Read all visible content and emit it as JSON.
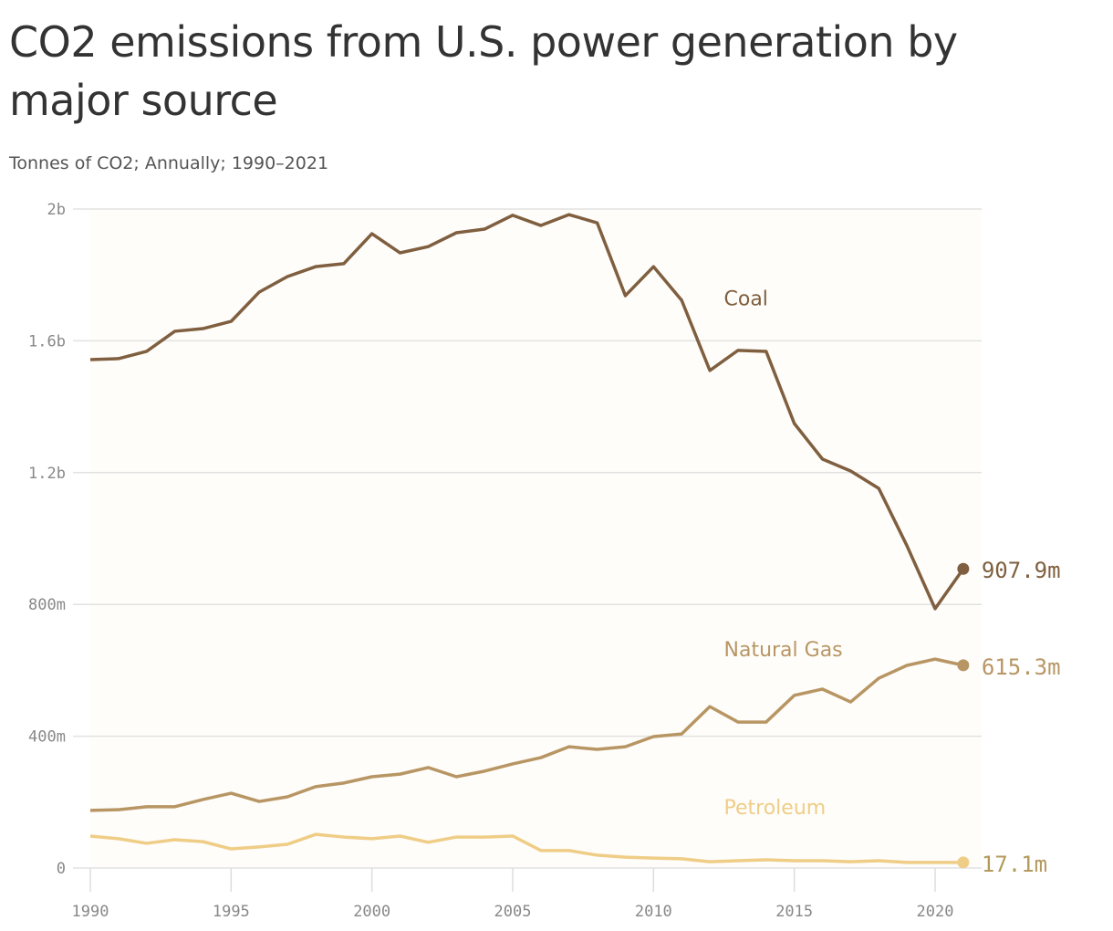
{
  "chart_data": {
    "type": "line",
    "title": "CO2 emissions from U.S. power generation by major source",
    "subtitle": "Tonnes of CO2; Annually; 1990–2021",
    "ylim": [
      0,
      2000000000
    ],
    "grid": true,
    "yticks": [
      {
        "v": 0,
        "label": "0"
      },
      {
        "v": 400000000,
        "label": "400m"
      },
      {
        "v": 800000000,
        "label": "800m"
      },
      {
        "v": 1200000000,
        "label": "1.2b"
      },
      {
        "v": 1600000000,
        "label": "1.6b"
      },
      {
        "v": 2000000000,
        "label": "2b"
      }
    ],
    "xticks": [
      1990,
      1995,
      2000,
      2005,
      2010,
      2015,
      2020
    ],
    "x": [
      1990,
      1991,
      1992,
      1993,
      1994,
      1995,
      1996,
      1997,
      1998,
      1999,
      2000,
      2001,
      2002,
      2003,
      2004,
      2005,
      2006,
      2007,
      2008,
      2009,
      2010,
      2011,
      2012,
      2013,
      2014,
      2015,
      2016,
      2017,
      2018,
      2019,
      2020,
      2021
    ],
    "series": [
      {
        "name": "Coal",
        "color": "#7f5f3f",
        "end_label": "907.9m",
        "label_year": 2012.5,
        "label_value": 1730000000,
        "values": [
          1543,
          1546,
          1568,
          1629,
          1637,
          1659,
          1748,
          1795,
          1825,
          1834,
          1925,
          1867,
          1886,
          1928,
          1939,
          1981,
          1950,
          1983,
          1958,
          1737,
          1825,
          1723,
          1510,
          1571,
          1568,
          1349,
          1241,
          1205,
          1152,
          978,
          787,
          907.9
        ]
      },
      {
        "name": "Natural Gas",
        "color": "#b89664",
        "end_label": "615.3m",
        "label_color": "#b89664",
        "label_year": 2012.5,
        "label_value": 665000000,
        "values": [
          175,
          177,
          186,
          186,
          208,
          227,
          202,
          216,
          247,
          258,
          277,
          285,
          305,
          277,
          294,
          316,
          335,
          368,
          360,
          368,
          399,
          407,
          490,
          443,
          443,
          524,
          543,
          504,
          576,
          615,
          634,
          615.3
        ]
      },
      {
        "name": "Petroleum",
        "color": "#efcd86",
        "end_label": "17.1m",
        "end_label_color": "#b39a5c",
        "label_year": 2012.5,
        "label_value": 185000000,
        "values": [
          97,
          89,
          75,
          86,
          80,
          58,
          64,
          72,
          102,
          94,
          89,
          97,
          78,
          94,
          94,
          97,
          53,
          53,
          39,
          33,
          30,
          28,
          19,
          22,
          25,
          22,
          22,
          19,
          22,
          17,
          17,
          17.1
        ]
      }
    ],
    "value_unit_in_series": "millions of tonnes"
  }
}
